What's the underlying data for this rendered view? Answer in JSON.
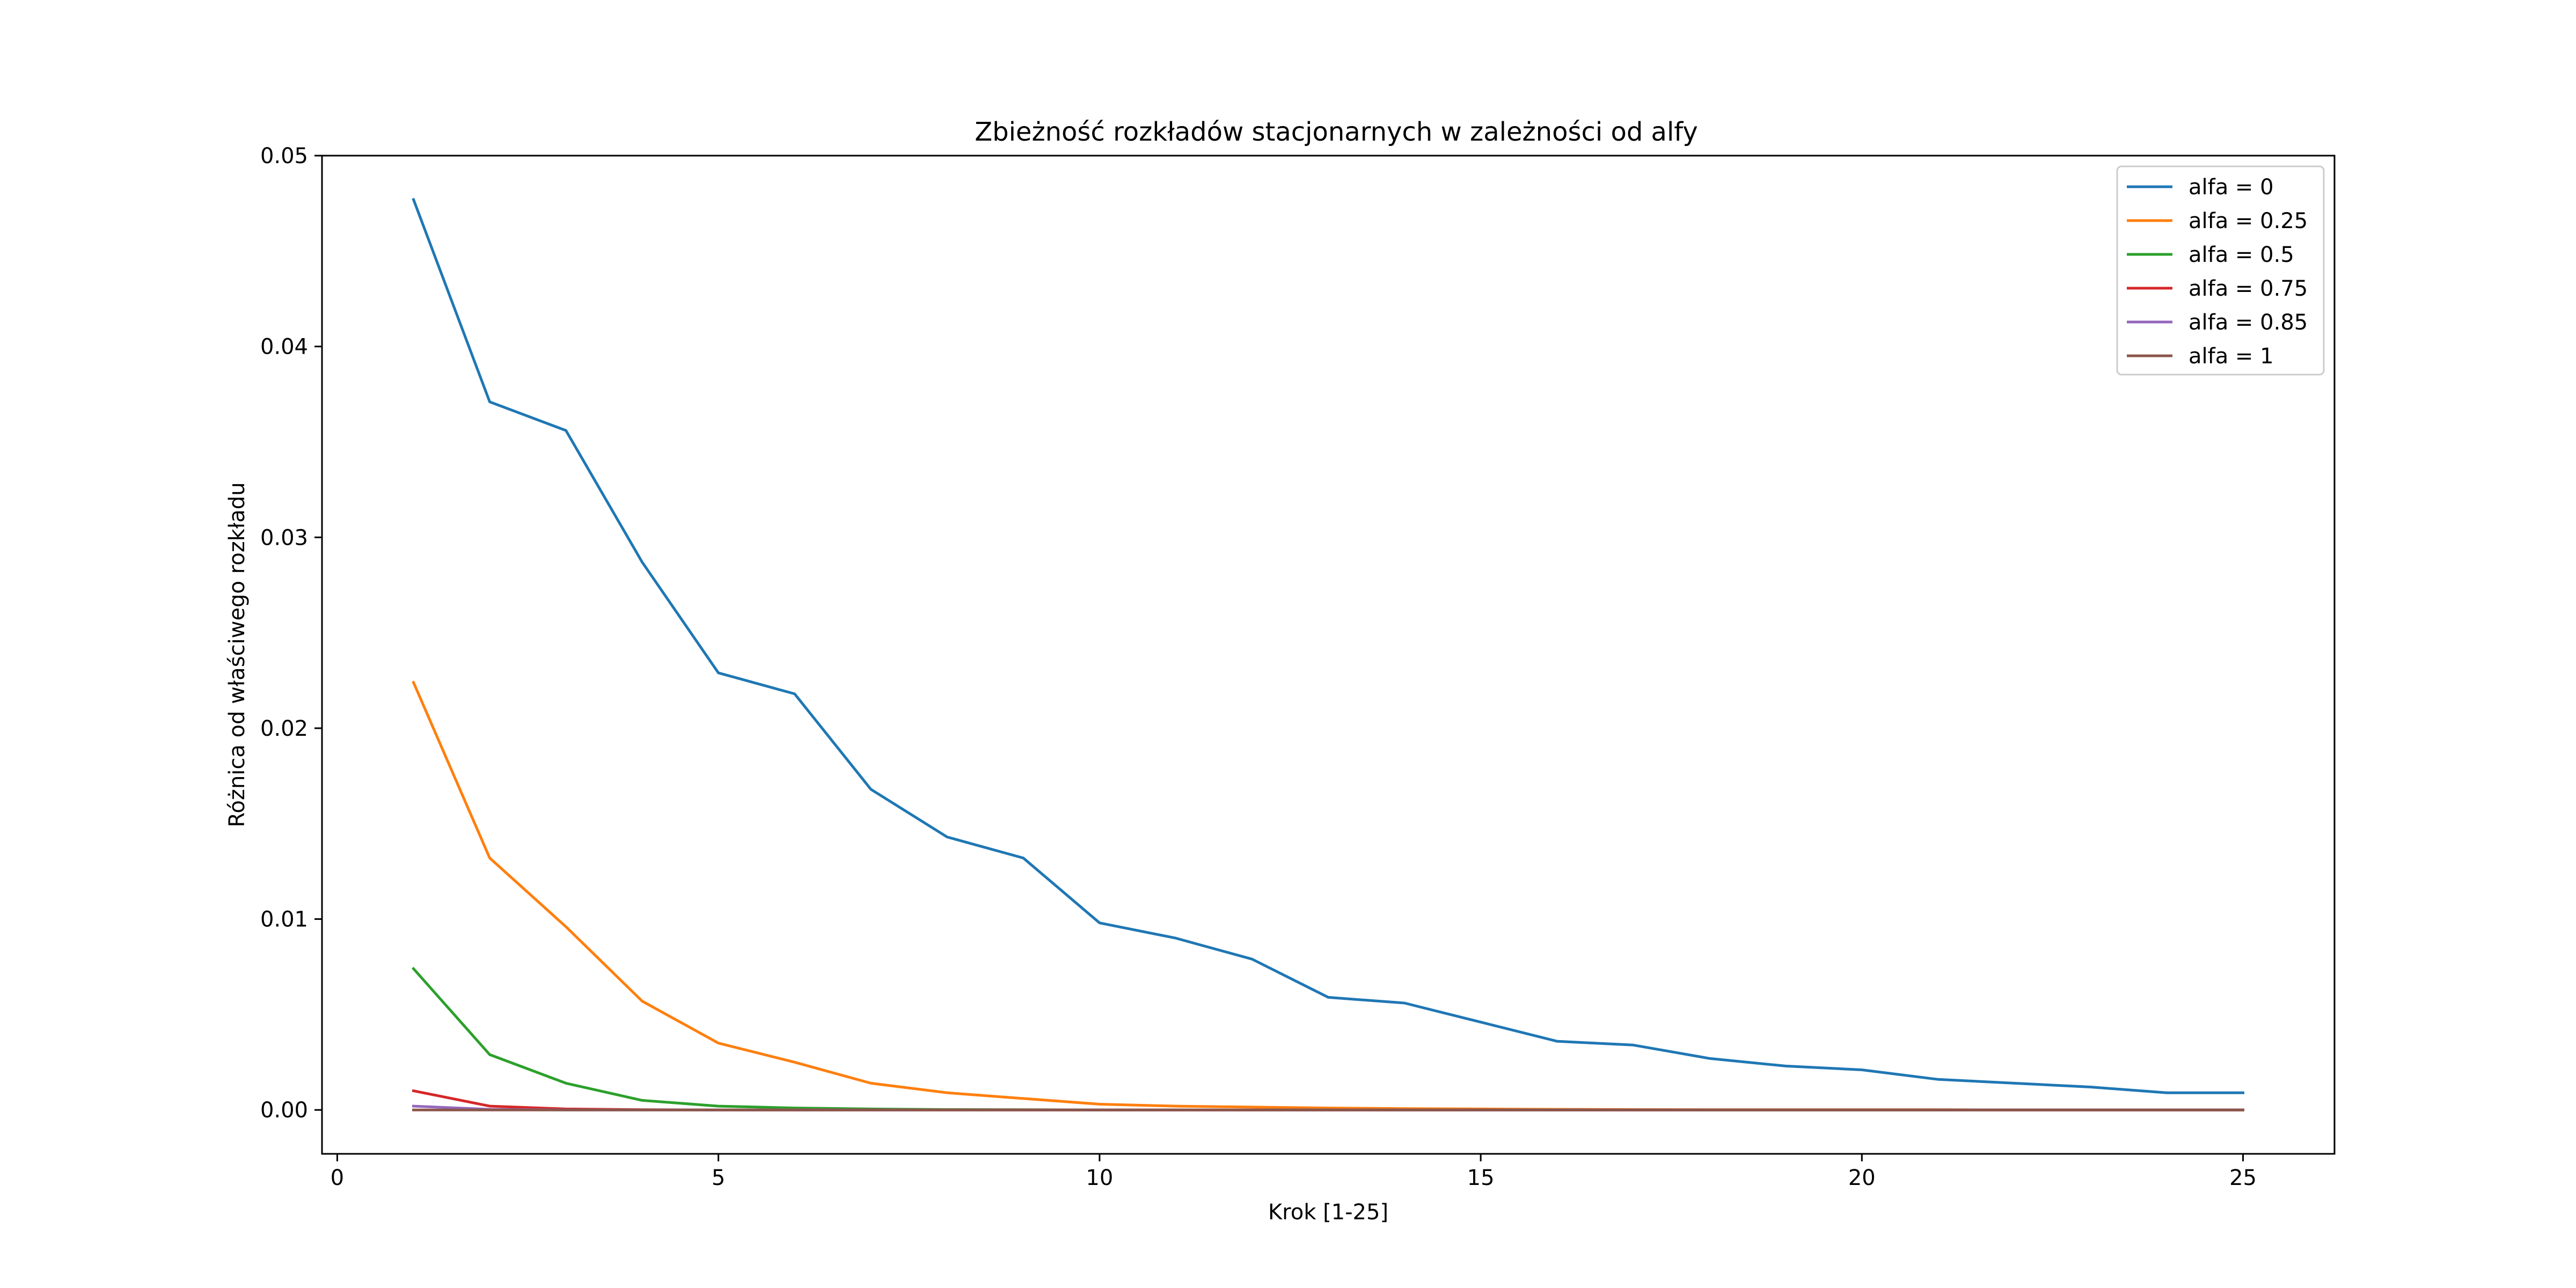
{
  "chart_data": {
    "type": "line",
    "title": "Zbieżność rozkładów stacjonarnych w zależności od alfy",
    "xlabel": "Krok [1-25]",
    "ylabel": "Różnica od właściwego rozkładu",
    "xlim": [
      -0.2,
      26.2
    ],
    "ylim": [
      -0.0023,
      0.05
    ],
    "xticks": [
      0,
      5,
      10,
      15,
      20,
      25
    ],
    "yticks": [
      0.0,
      0.01,
      0.02,
      0.03,
      0.04,
      0.05
    ],
    "ytick_labels": [
      "0.00",
      "0.01",
      "0.02",
      "0.03",
      "0.04",
      "0.05"
    ],
    "grid": false,
    "legend_position": "top-right",
    "x": [
      1,
      2,
      3,
      4,
      5,
      6,
      7,
      8,
      9,
      10,
      11,
      12,
      13,
      14,
      15,
      16,
      17,
      18,
      19,
      20,
      21,
      22,
      23,
      24,
      25
    ],
    "series": [
      {
        "name": "alfa = 0",
        "color": "#1f77b4",
        "values": [
          0.0477,
          0.0371,
          0.0356,
          0.0287,
          0.0229,
          0.0218,
          0.0168,
          0.0143,
          0.0132,
          0.0098,
          0.009,
          0.0079,
          0.0059,
          0.0056,
          0.0046,
          0.0036,
          0.0034,
          0.0027,
          0.0023,
          0.0021,
          0.0016,
          0.0014,
          0.0012,
          0.0009,
          0.0009
        ]
      },
      {
        "name": "alfa = 0.25",
        "color": "#ff7f0e",
        "values": [
          0.0224,
          0.0132,
          0.0096,
          0.0057,
          0.0035,
          0.0025,
          0.0014,
          0.0009,
          0.0006,
          0.0003,
          0.0002,
          0.00015,
          0.0001,
          7e-05,
          5e-05,
          3e-05,
          2e-05,
          1e-05,
          1e-05,
          1e-05,
          1e-05,
          0.0,
          0.0,
          0.0,
          0.0
        ]
      },
      {
        "name": "alfa = 0.5",
        "color": "#2ca02c",
        "values": [
          0.0074,
          0.0029,
          0.0014,
          0.0005,
          0.0002,
          0.0001,
          5e-05,
          2e-05,
          1e-05,
          0.0,
          0.0,
          0.0,
          0.0,
          0.0,
          0.0,
          0.0,
          0.0,
          0.0,
          0.0,
          0.0,
          0.0,
          0.0,
          0.0,
          0.0,
          0.0
        ]
      },
      {
        "name": "alfa = 0.75",
        "color": "#d62728",
        "values": [
          0.001,
          0.0002,
          5e-05,
          1e-05,
          0.0,
          0.0,
          0.0,
          0.0,
          0.0,
          0.0,
          0.0,
          0.0,
          0.0,
          0.0,
          0.0,
          0.0,
          0.0,
          0.0,
          0.0,
          0.0,
          0.0,
          0.0,
          0.0,
          0.0,
          0.0
        ]
      },
      {
        "name": "alfa = 0.85",
        "color": "#9467bd",
        "values": [
          0.0002,
          3e-05,
          0.0,
          0.0,
          0.0,
          0.0,
          0.0,
          0.0,
          0.0,
          0.0,
          0.0,
          0.0,
          0.0,
          0.0,
          0.0,
          0.0,
          0.0,
          0.0,
          0.0,
          0.0,
          0.0,
          0.0,
          0.0,
          0.0,
          0.0
        ]
      },
      {
        "name": "alfa = 1",
        "color": "#8c564b",
        "values": [
          0.0,
          0.0,
          0.0,
          0.0,
          0.0,
          0.0,
          0.0,
          0.0,
          0.0,
          0.0,
          0.0,
          0.0,
          0.0,
          0.0,
          0.0,
          0.0,
          0.0,
          0.0,
          0.0,
          0.0,
          0.0,
          0.0,
          0.0,
          0.0,
          0.0
        ]
      }
    ]
  }
}
